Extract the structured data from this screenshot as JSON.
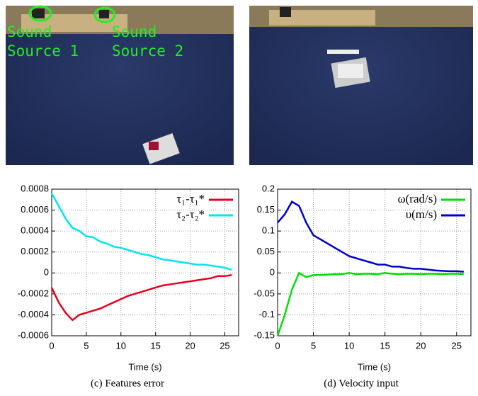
{
  "photo_labels": [
    [
      "Sound",
      "Source 1"
    ],
    [
      "Sound",
      "Source 2"
    ]
  ],
  "chart_data": [
    {
      "type": "line",
      "caption": "(c) Features error",
      "xlabel": "Time (s)",
      "x": [
        0,
        1,
        2,
        3,
        4,
        5,
        6,
        7,
        8,
        9,
        10,
        11,
        12,
        13,
        14,
        15,
        16,
        17,
        18,
        19,
        20,
        21,
        22,
        23,
        24,
        25,
        26
      ],
      "xlim": [
        0,
        27
      ],
      "xticks": [
        0,
        5,
        10,
        15,
        20,
        25
      ],
      "ylim": [
        -0.0006,
        0.0008
      ],
      "yticks": [
        -0.0006,
        -0.0004,
        -0.0002,
        0,
        0.0002,
        0.0004,
        0.0006,
        0.0008
      ],
      "grid": true,
      "legend": "top-right",
      "series": [
        {
          "name": "τ₁-τ₁*",
          "color": "#e8001c",
          "values": [
            -0.00014,
            -0.00028,
            -0.00038,
            -0.00045,
            -0.0004,
            -0.00038,
            -0.00036,
            -0.00034,
            -0.00031,
            -0.00028,
            -0.00025,
            -0.00022,
            -0.0002,
            -0.00018,
            -0.00016,
            -0.00014,
            -0.00012,
            -0.00011,
            -0.0001,
            -9e-05,
            -8e-05,
            -7e-05,
            -6e-05,
            -5e-05,
            -3e-05,
            -3e-05,
            -2e-05
          ]
        },
        {
          "name": "τ₂-τ₂*",
          "color": "#00e5ee",
          "values": [
            0.00076,
            0.00064,
            0.00052,
            0.00043,
            0.0004,
            0.00035,
            0.00034,
            0.0003,
            0.00028,
            0.00025,
            0.00024,
            0.00022,
            0.0002,
            0.00018,
            0.00017,
            0.00015,
            0.00013,
            0.00012,
            0.00011,
            0.0001,
            9e-05,
            8e-05,
            8e-05,
            7e-05,
            6e-05,
            5e-05,
            3e-05
          ]
        }
      ]
    },
    {
      "type": "line",
      "caption": "(d) Velocity input",
      "xlabel": "Time (s)",
      "x": [
        0,
        1,
        2,
        3,
        4,
        5,
        6,
        7,
        8,
        9,
        10,
        11,
        12,
        13,
        14,
        15,
        16,
        17,
        18,
        19,
        20,
        21,
        22,
        23,
        24,
        25,
        26
      ],
      "xlim": [
        0,
        27
      ],
      "xticks": [
        0,
        5,
        10,
        15,
        20,
        25
      ],
      "ylim": [
        -0.15,
        0.2
      ],
      "yticks": [
        -0.15,
        -0.1,
        -0.05,
        0,
        0.05,
        0.1,
        0.15,
        0.2
      ],
      "grid": true,
      "legend": "top-right",
      "series": [
        {
          "name": "ω(rad/s)",
          "color": "#00e000",
          "values": [
            -0.15,
            -0.1,
            -0.04,
            0,
            -0.01,
            -0.005,
            -0.005,
            -0.004,
            -0.003,
            -0.003,
            0,
            -0.003,
            -0.002,
            -0.002,
            -0.003,
            0,
            -0.002,
            -0.003,
            -0.002,
            -0.002,
            -0.003,
            -0.002,
            -0.002,
            -0.003,
            -0.002,
            -0.002,
            -0.003
          ]
        },
        {
          "name": "υ(m/s)",
          "color": "#0000cc",
          "values": [
            0.12,
            0.14,
            0.17,
            0.16,
            0.12,
            0.09,
            0.08,
            0.07,
            0.06,
            0.05,
            0.04,
            0.035,
            0.03,
            0.025,
            0.02,
            0.02,
            0.015,
            0.015,
            0.012,
            0.01,
            0.01,
            0.008,
            0.006,
            0.005,
            0.004,
            0.004,
            0.003
          ]
        }
      ]
    }
  ]
}
